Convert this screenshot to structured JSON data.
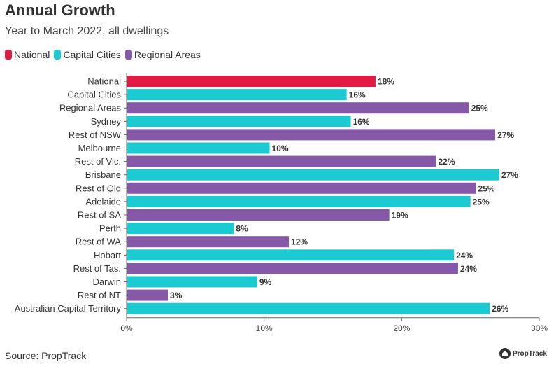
{
  "header": {
    "title": "Annual Growth",
    "subtitle": "Year to March 2022, all dwellings"
  },
  "legend": [
    {
      "label": "National",
      "color": "#e31a43"
    },
    {
      "label": "Capital Cities",
      "color": "#1ccbd1"
    },
    {
      "label": "Regional Areas",
      "color": "#8559a8"
    }
  ],
  "footer": {
    "source": "Source: PropTrack",
    "brand": "PropTrack"
  },
  "chart_data": {
    "type": "bar",
    "orientation": "horizontal",
    "title": "Annual Growth",
    "subtitle": "Year to March 2022, all dwellings",
    "xlabel": "",
    "ylabel": "",
    "xlim": [
      0,
      30
    ],
    "x_ticks": [
      "0%",
      "10%",
      "20%",
      "30%"
    ],
    "x_tick_values": [
      0,
      10,
      20,
      30
    ],
    "categories": [
      "National",
      "Capital Cities",
      "Regional Areas",
      "Sydney",
      "Rest of NSW",
      "Melbourne",
      "Rest of Vic.",
      "Brisbane",
      "Rest of Qld",
      "Adelaide",
      "Rest of SA",
      "Perth",
      "Rest of WA",
      "Hobart",
      "Rest of Tas.",
      "Darwin",
      "Rest of NT",
      "Australian Capital Territory"
    ],
    "values": [
      18.1,
      16.0,
      24.9,
      16.3,
      26.8,
      10.4,
      22.5,
      27.1,
      25.4,
      25.0,
      19.1,
      7.8,
      11.8,
      23.8,
      24.1,
      9.5,
      3.0,
      26.4
    ],
    "labels": [
      "18%",
      "16%",
      "25%",
      "16%",
      "27%",
      "10%",
      "22%",
      "27%",
      "25%",
      "25%",
      "19%",
      "8%",
      "12%",
      "24%",
      "24%",
      "9%",
      "3%",
      "26%"
    ],
    "groups": [
      "National",
      "Capital Cities",
      "Regional Areas",
      "Capital Cities",
      "Regional Areas",
      "Capital Cities",
      "Regional Areas",
      "Capital Cities",
      "Regional Areas",
      "Capital Cities",
      "Regional Areas",
      "Capital Cities",
      "Regional Areas",
      "Capital Cities",
      "Regional Areas",
      "Capital Cities",
      "Regional Areas",
      "Capital Cities"
    ],
    "group_colors": {
      "National": "#e31a43",
      "Capital Cities": "#1ccbd1",
      "Regional Areas": "#8559a8"
    },
    "grid": false,
    "legend_position": "top-left"
  }
}
